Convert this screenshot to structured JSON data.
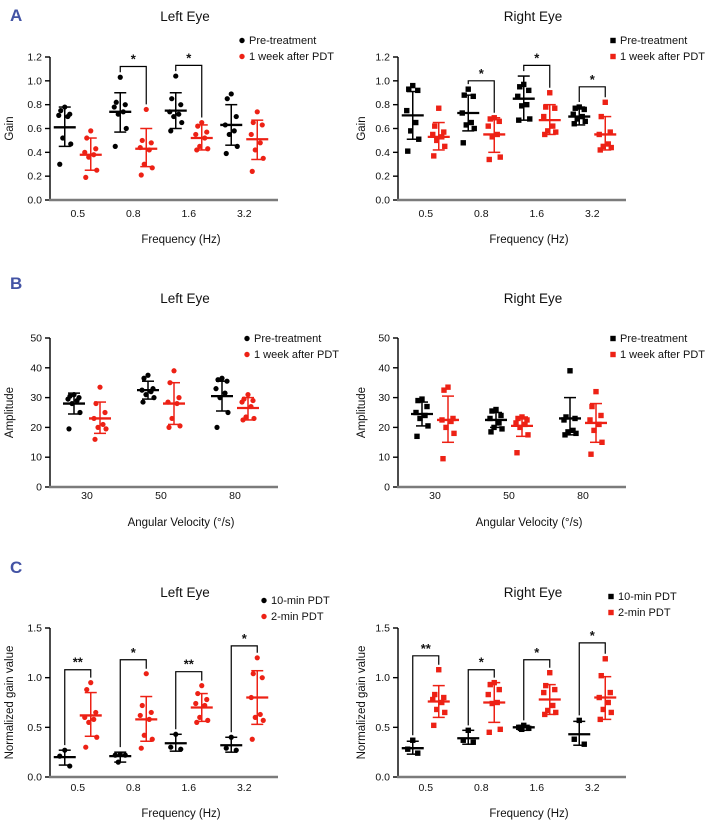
{
  "figure": {
    "panels": [
      {
        "label": "A"
      },
      {
        "label": "B"
      },
      {
        "label": "C"
      }
    ],
    "colors": {
      "panel_label": "#4353a4",
      "pre_treatment_series": "#000000",
      "pdt_series": "#ed2115",
      "x_axis_line": "#7b7b7b",
      "y_axis_line": "#000000"
    }
  },
  "chart_data": [
    {
      "id": "A-left",
      "panel": "A",
      "type": "scatter",
      "title": "Left Eye",
      "marker": "circle",
      "xlabel": "Frequency (Hz)",
      "ylabel": "Gain",
      "ylim": [
        0,
        1.2
      ],
      "yticks": [
        0,
        0.2,
        0.4,
        0.6,
        0.8,
        1.0,
        1.2
      ],
      "ytick_decimals": 1,
      "grid": false,
      "legend_position": "top-right",
      "categories": [
        "0.5",
        "0.8",
        "1.6",
        "3.2"
      ],
      "series": [
        {
          "name": "Pre-treatment",
          "color": "#000000",
          "groups": [
            {
              "points": [
                0.78,
                0.75,
                0.72,
                0.71,
                0.7,
                0.52,
                0.47,
                0.3
              ],
              "mean": 0.61,
              "lo": 0.45,
              "hi": 0.78
            },
            {
              "points": [
                1.03,
                0.82,
                0.8,
                0.78,
                0.74,
                0.72,
                0.6,
                0.45
              ],
              "mean": 0.74,
              "lo": 0.57,
              "hi": 0.9
            },
            {
              "points": [
                1.04,
                0.85,
                0.8,
                0.74,
                0.72,
                0.7,
                0.65,
                0.58
              ],
              "mean": 0.75,
              "lo": 0.6,
              "hi": 0.9
            },
            {
              "points": [
                0.89,
                0.85,
                0.7,
                0.63,
                0.58,
                0.55,
                0.45,
                0.39
              ],
              "mean": 0.63,
              "lo": 0.46,
              "hi": 0.8
            }
          ]
        },
        {
          "name": "1 week after PDT",
          "color": "#ed2115",
          "groups": [
            {
              "points": [
                0.58,
                0.52,
                0.43,
                0.4,
                0.38,
                0.36,
                0.25,
                0.19
              ],
              "mean": 0.38,
              "lo": 0.25,
              "hi": 0.52
            },
            {
              "points": [
                0.76,
                0.5,
                0.48,
                0.44,
                0.42,
                0.3,
                0.27,
                0.21
              ],
              "mean": 0.43,
              "lo": 0.28,
              "hi": 0.6
            },
            {
              "points": [
                0.65,
                0.62,
                0.57,
                0.55,
                0.52,
                0.45,
                0.43,
                0.42
              ],
              "mean": 0.52,
              "lo": 0.42,
              "hi": 0.63
            },
            {
              "points": [
                0.74,
                0.65,
                0.63,
                0.55,
                0.48,
                0.42,
                0.35,
                0.24
              ],
              "mean": 0.51,
              "lo": 0.34,
              "hi": 0.67
            }
          ]
        }
      ],
      "significance": [
        {
          "category": "0.8",
          "label": "*",
          "y": 1.12
        },
        {
          "category": "1.6",
          "label": "*",
          "y": 1.13
        }
      ]
    },
    {
      "id": "A-right",
      "panel": "A",
      "type": "scatter",
      "title": "Right Eye",
      "marker": "square",
      "xlabel": "Frequency (Hz)",
      "ylabel": "Gain",
      "ylim": [
        0,
        1.2
      ],
      "yticks": [
        0,
        0.2,
        0.4,
        0.6,
        0.8,
        1.0,
        1.2
      ],
      "ytick_decimals": 1,
      "grid": false,
      "legend_position": "top-right",
      "categories": [
        "0.5",
        "0.8",
        "1.6",
        "3.2"
      ],
      "series": [
        {
          "name": "Pre-treatment",
          "color": "#000000",
          "groups": [
            {
              "points": [
                0.96,
                0.93,
                0.92,
                0.75,
                0.65,
                0.58,
                0.51,
                0.41
              ],
              "mean": 0.71,
              "lo": 0.51,
              "hi": 0.91
            },
            {
              "points": [
                0.93,
                0.88,
                0.87,
                0.73,
                0.65,
                0.63,
                0.6,
                0.48
              ],
              "mean": 0.73,
              "lo": 0.58,
              "hi": 0.88
            },
            {
              "points": [
                0.97,
                0.95,
                0.92,
                0.87,
                0.8,
                0.79,
                0.68,
                0.67
              ],
              "mean": 0.85,
              "lo": 0.67,
              "hi": 1.04
            },
            {
              "points": [
                0.78,
                0.77,
                0.76,
                0.72,
                0.7,
                0.68,
                0.66,
                0.64
              ],
              "mean": 0.7,
              "lo": 0.63,
              "hi": 0.78
            }
          ]
        },
        {
          "name": "1 week after PDT",
          "color": "#ed2115",
          "groups": [
            {
              "points": [
                0.77,
                0.62,
                0.57,
                0.55,
                0.53,
                0.5,
                0.45,
                0.37
              ],
              "mean": 0.53,
              "lo": 0.42,
              "hi": 0.65
            },
            {
              "points": [
                0.69,
                0.68,
                0.66,
                0.62,
                0.55,
                0.53,
                0.36,
                0.34
              ],
              "mean": 0.55,
              "lo": 0.4,
              "hi": 0.69
            },
            {
              "points": [
                0.9,
                0.78,
                0.77,
                0.7,
                0.62,
                0.58,
                0.57,
                0.55
              ],
              "mean": 0.67,
              "lo": 0.55,
              "hi": 0.8
            },
            {
              "points": [
                0.82,
                0.7,
                0.57,
                0.55,
                0.47,
                0.45,
                0.44,
                0.42
              ],
              "mean": 0.55,
              "lo": 0.42,
              "hi": 0.7
            }
          ]
        }
      ],
      "significance": [
        {
          "category": "0.8",
          "label": "*",
          "y": 1.0
        },
        {
          "category": "1.6",
          "label": "*",
          "y": 1.13
        },
        {
          "category": "3.2",
          "label": "*",
          "y": 0.95
        }
      ]
    },
    {
      "id": "B-left",
      "panel": "B",
      "type": "scatter",
      "title": "Left Eye",
      "marker": "circle",
      "xlabel": "Angular Velocity (°/s)",
      "ylabel": "Amplitude",
      "ylim": [
        0,
        50
      ],
      "yticks": [
        0,
        10,
        20,
        30,
        40,
        50
      ],
      "ytick_decimals": 0,
      "grid": false,
      "legend_position": "top-right",
      "categories": [
        "30",
        "50",
        "80"
      ],
      "series": [
        {
          "name": "Pre-treatment",
          "color": "#000000",
          "groups": [
            {
              "points": [
                31,
                30.5,
                30,
                29.5,
                29,
                28,
                25,
                19.5
              ],
              "mean": 28,
              "lo": 24.5,
              "hi": 31.5
            },
            {
              "points": [
                37.5,
                36.5,
                33,
                32.5,
                32,
                31,
                30,
                28.5
              ],
              "mean": 32.5,
              "lo": 29.5,
              "hi": 35.5
            },
            {
              "points": [
                36.5,
                36,
                35.5,
                33,
                31.5,
                30,
                25,
                20
              ],
              "mean": 30.5,
              "lo": 25.5,
              "hi": 35.5
            }
          ]
        },
        {
          "name": "1 week after PDT",
          "color": "#ed2115",
          "groups": [
            {
              "points": [
                33.5,
                28,
                25,
                23,
                21,
                20,
                19.5,
                16
              ],
              "mean": 23,
              "lo": 18,
              "hi": 28.5
            },
            {
              "points": [
                39,
                35,
                30,
                28.5,
                28,
                23,
                20.5,
                20
              ],
              "mean": 28,
              "lo": 21,
              "hi": 35
            },
            {
              "points": [
                31,
                29.5,
                29,
                28.5,
                27,
                23.5,
                23,
                22.5
              ],
              "mean": 26.5,
              "lo": 22.5,
              "hi": 30
            }
          ]
        }
      ],
      "significance": []
    },
    {
      "id": "B-right",
      "panel": "B",
      "type": "scatter",
      "title": "Right Eye",
      "marker": "square",
      "xlabel": "Angular Velocity (°/s)",
      "ylabel": "Amplitude",
      "ylim": [
        0,
        50
      ],
      "yticks": [
        0,
        10,
        20,
        30,
        40,
        50
      ],
      "ytick_decimals": 0,
      "grid": false,
      "legend_position": "top-right",
      "categories": [
        "30",
        "50",
        "80"
      ],
      "series": [
        {
          "name": "Pre-treatment",
          "color": "#000000",
          "groups": [
            {
              "points": [
                29.5,
                29,
                27,
                25,
                24,
                23,
                20.5,
                17
              ],
              "mean": 24.5,
              "lo": 20.5,
              "hi": 28.5
            },
            {
              "points": [
                26,
                25.5,
                24,
                23,
                21.5,
                20,
                19.5,
                18.5
              ],
              "mean": 22.5,
              "lo": 20,
              "hi": 25
            },
            {
              "points": [
                39,
                23.5,
                23,
                22.5,
                19,
                18.5,
                18,
                17.5
              ],
              "mean": 23,
              "lo": 17.5,
              "hi": 30
            }
          ]
        },
        {
          "name": "1 week after PDT",
          "color": "#ed2115",
          "groups": [
            {
              "points": [
                33.5,
                32.5,
                23,
                22.5,
                22,
                20,
                18,
                9.5
              ],
              "mean": 22.5,
              "lo": 15,
              "hi": 30.5
            },
            {
              "points": [
                23.5,
                23,
                22.5,
                21.5,
                21,
                20,
                17.5,
                11.5
              ],
              "mean": 20.5,
              "lo": 17,
              "hi": 23.5
            },
            {
              "points": [
                32,
                27,
                24,
                22.5,
                21,
                19,
                15,
                11
              ],
              "mean": 21.5,
              "lo": 15,
              "hi": 28
            }
          ]
        }
      ],
      "significance": []
    },
    {
      "id": "C-left",
      "panel": "C",
      "type": "scatter",
      "title": "Left Eye",
      "marker": "circle",
      "xlabel": "Frequency (Hz)",
      "ylabel": "Normalized gain value",
      "ylim": [
        0,
        1.5
      ],
      "yticks": [
        0,
        0.5,
        1.0,
        1.5
      ],
      "ytick_decimals": 1,
      "grid": false,
      "legend_position": "top-right",
      "categories": [
        "0.5",
        "0.8",
        "1.6",
        "3.2"
      ],
      "series": [
        {
          "name": "10-min PDT",
          "color": "#000000",
          "groups": [
            {
              "points": [
                0.27,
                0.21,
                0.11
              ],
              "mean": 0.2,
              "lo": 0.12,
              "hi": 0.27
            },
            {
              "points": [
                0.23,
                0.22,
                0.22,
                0.15
              ],
              "mean": 0.21,
              "lo": 0.15,
              "hi": 0.25
            },
            {
              "points": [
                0.43,
                0.3,
                0.28
              ],
              "mean": 0.34,
              "lo": 0.26,
              "hi": 0.43
            },
            {
              "points": [
                0.4,
                0.29,
                0.27
              ],
              "mean": 0.32,
              "lo": 0.25,
              "hi": 0.4
            }
          ]
        },
        {
          "name": "2-min PDT",
          "color": "#ed2115",
          "groups": [
            {
              "points": [
                0.95,
                0.88,
                0.65,
                0.6,
                0.58,
                0.55,
                0.4,
                0.3
              ],
              "mean": 0.62,
              "lo": 0.41,
              "hi": 0.85
            },
            {
              "points": [
                1.04,
                0.72,
                0.65,
                0.62,
                0.58,
                0.42,
                0.38,
                0.29
              ],
              "mean": 0.58,
              "lo": 0.36,
              "hi": 0.81
            },
            {
              "points": [
                0.92,
                0.84,
                0.78,
                0.74,
                0.72,
                0.6,
                0.57,
                0.55
              ],
              "mean": 0.7,
              "lo": 0.56,
              "hi": 0.84
            },
            {
              "points": [
                1.2,
                1.04,
                1.0,
                0.8,
                0.63,
                0.6,
                0.57,
                0.38
              ],
              "mean": 0.8,
              "lo": 0.53,
              "hi": 1.07
            }
          ]
        }
      ],
      "significance": [
        {
          "category": "0.5",
          "label": "**",
          "y": 1.08
        },
        {
          "category": "0.8",
          "label": "*",
          "y": 1.18
        },
        {
          "category": "1.6",
          "label": "**",
          "y": 1.06
        },
        {
          "category": "3.2",
          "label": "*",
          "y": 1.32
        }
      ]
    },
    {
      "id": "C-right",
      "panel": "C",
      "type": "scatter",
      "title": "Right Eye",
      "marker": "square",
      "xlabel": "Frequency (Hz)",
      "ylabel": "Normalized gain value",
      "ylim": [
        0,
        1.5
      ],
      "yticks": [
        0,
        0.5,
        1.0,
        1.5
      ],
      "ytick_decimals": 1,
      "grid": false,
      "legend_position": "top-right",
      "categories": [
        "0.5",
        "0.8",
        "1.6",
        "3.2"
      ],
      "series": [
        {
          "name": "10-min PDT",
          "color": "#000000",
          "groups": [
            {
              "points": [
                0.37,
                0.28,
                0.24
              ],
              "mean": 0.29,
              "lo": 0.23,
              "hi": 0.36
            },
            {
              "points": [
                0.47,
                0.37,
                0.35
              ],
              "mean": 0.39,
              "lo": 0.33,
              "hi": 0.47
            },
            {
              "points": [
                0.52,
                0.5,
                0.49,
                0.48
              ],
              "mean": 0.5,
              "lo": 0.47,
              "hi": 0.52
            },
            {
              "points": [
                0.57,
                0.38,
                0.33
              ],
              "mean": 0.43,
              "lo": 0.32,
              "hi": 0.56
            }
          ]
        },
        {
          "name": "2-min PDT",
          "color": "#ed2115",
          "groups": [
            {
              "points": [
                1.08,
                0.83,
                0.8,
                0.78,
                0.75,
                0.68,
                0.65,
                0.52
              ],
              "mean": 0.76,
              "lo": 0.6,
              "hi": 0.92
            },
            {
              "points": [
                0.95,
                0.93,
                0.88,
                0.83,
                0.75,
                0.74,
                0.48,
                0.45
              ],
              "mean": 0.75,
              "lo": 0.55,
              "hi": 0.95
            },
            {
              "points": [
                1.05,
                0.92,
                0.88,
                0.85,
                0.72,
                0.67,
                0.65,
                0.63
              ],
              "mean": 0.78,
              "lo": 0.63,
              "hi": 0.93
            },
            {
              "points": [
                1.19,
                1.02,
                0.85,
                0.8,
                0.75,
                0.68,
                0.65,
                0.58
              ],
              "mean": 0.8,
              "lo": 0.58,
              "hi": 1.01
            }
          ]
        }
      ],
      "significance": [
        {
          "category": "0.5",
          "label": "**",
          "y": 1.22
        },
        {
          "category": "0.8",
          "label": "*",
          "y": 1.08
        },
        {
          "category": "1.6",
          "label": "*",
          "y": 1.18
        },
        {
          "category": "3.2",
          "label": "*",
          "y": 1.35
        }
      ]
    }
  ]
}
